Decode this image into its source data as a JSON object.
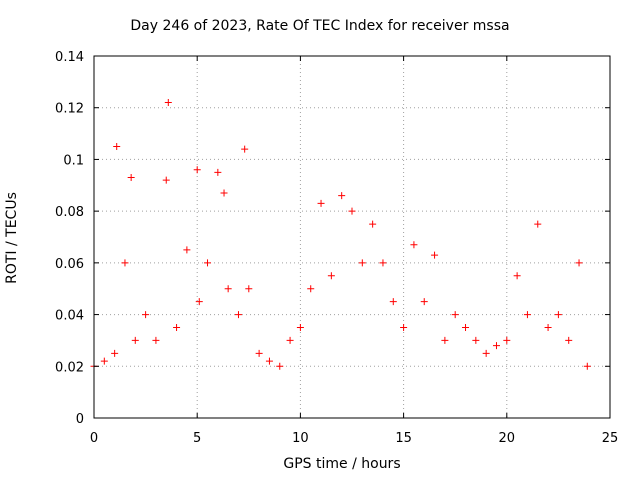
{
  "chart_data": {
    "type": "scatter",
    "title": "Day 246 of 2023, Rate Of TEC Index for receiver mssa",
    "xlabel": "GPS time / hours",
    "ylabel": "ROTI / TECUs",
    "xlim": [
      0,
      25
    ],
    "ylim": [
      0,
      0.14
    ],
    "xticks": [
      0,
      5,
      10,
      15,
      20,
      25
    ],
    "xtick_labels": [
      "0",
      "5",
      "10",
      "15",
      "20",
      "25"
    ],
    "yticks": [
      0,
      0.02,
      0.04,
      0.06,
      0.08,
      0.1,
      0.12,
      0.14
    ],
    "ytick_labels": [
      "0",
      "0.02",
      "0.04",
      "0.06",
      "0.08",
      "0.1",
      "0.12",
      "0.14"
    ],
    "grid": true,
    "marker": "+",
    "color": "#ff0000",
    "series": [
      {
        "x": [
          0.0,
          0.5,
          1.0,
          1.1,
          1.5,
          1.8,
          2.0,
          2.5,
          3.0,
          3.5,
          3.6,
          4.0,
          4.5,
          5.0,
          5.1,
          5.5,
          6.0,
          6.3,
          6.5,
          7.0,
          7.3,
          7.5,
          8.0,
          8.5,
          9.0,
          9.5,
          10.0,
          10.5,
          11.0,
          11.5,
          12.0,
          12.5,
          13.0,
          13.5,
          14.0,
          14.5,
          15.0,
          15.5,
          16.0,
          16.5,
          17.0,
          17.5,
          18.0,
          18.5,
          19.0,
          19.5,
          20.0,
          20.5,
          21.0,
          21.5,
          22.0,
          22.5,
          23.0,
          23.5,
          23.9
        ],
        "y": [
          0.02,
          0.022,
          0.025,
          0.105,
          0.06,
          0.093,
          0.03,
          0.04,
          0.03,
          0.092,
          0.122,
          0.035,
          0.065,
          0.096,
          0.045,
          0.06,
          0.095,
          0.087,
          0.05,
          0.04,
          0.104,
          0.05,
          0.025,
          0.022,
          0.02,
          0.03,
          0.035,
          0.05,
          0.083,
          0.055,
          0.086,
          0.08,
          0.06,
          0.075,
          0.06,
          0.045,
          0.035,
          0.067,
          0.045,
          0.063,
          0.03,
          0.04,
          0.035,
          0.03,
          0.025,
          0.028,
          0.03,
          0.055,
          0.04,
          0.075,
          0.035,
          0.04,
          0.03,
          0.06,
          0.02
        ]
      }
    ]
  }
}
